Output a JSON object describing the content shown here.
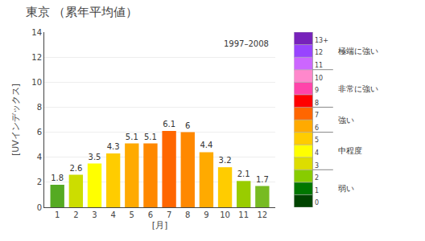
{
  "chart_data": {
    "type": "bar",
    "title": "東京",
    "subtitle": "（累年平均値）",
    "xlabel": "[月]",
    "ylabel": "[UVインデックス]",
    "x": [
      1,
      2,
      3,
      4,
      5,
      6,
      7,
      8,
      9,
      10,
      11,
      12
    ],
    "values": [
      1.8,
      2.6,
      3.5,
      4.3,
      5.1,
      5.1,
      6.1,
      6.0,
      4.4,
      3.2,
      2.1,
      1.7
    ],
    "colors": [
      "#55aa22",
      "#ccdd00",
      "#ffff00",
      "#ffcc00",
      "#ffaa00",
      "#ff8800",
      "#ff6600",
      "#ff8800",
      "#ffaa00",
      "#ffcc00",
      "#99cc00",
      "#77bb22"
    ],
    "xlim": [
      0.3,
      12.7
    ],
    "xticks": [
      1,
      2,
      3,
      4,
      5,
      6,
      7,
      8,
      9,
      10,
      11,
      12
    ],
    "ylim": [
      0,
      14
    ],
    "yticks": [
      0,
      2,
      4,
      6,
      8,
      10,
      12,
      14
    ],
    "grid": true,
    "data_labels": true,
    "annotations": [
      "1997–2008"
    ],
    "colorbar": {
      "colors": [
        "#004400",
        "#007700",
        "#88cc00",
        "#dddd00",
        "#ffff00",
        "#ffcc00",
        "#ffaa00",
        "#ff6600",
        "#ff0000",
        "#ff44aa",
        "#ff88cc",
        "#cc66ff",
        "#9944ff",
        "#7722bb"
      ],
      "range": [
        0,
        14
      ],
      "ticks": [
        0,
        1,
        2,
        3,
        4,
        5,
        6,
        7,
        8,
        9,
        10,
        11,
        12,
        {
          "value": 13,
          "label": "13+"
        }
      ],
      "boundaries": [
        3,
        6,
        8,
        11
      ],
      "categories": [
        {
          "label": "弱い",
          "range": [
            0,
            3
          ]
        },
        {
          "label": "中程度",
          "range": [
            3,
            6
          ]
        },
        {
          "label": "強い",
          "range": [
            6,
            8
          ]
        },
        {
          "label": "非常に強い",
          "range": [
            8,
            11
          ]
        },
        {
          "label": "極端に強い",
          "range": [
            11,
            14
          ]
        }
      ]
    }
  }
}
